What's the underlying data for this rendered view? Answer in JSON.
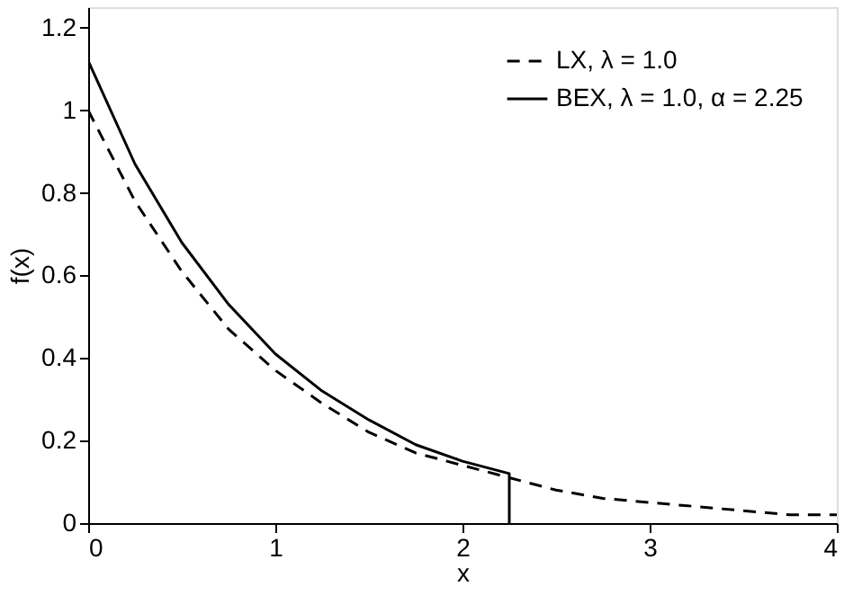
{
  "chart_data": {
    "type": "line",
    "xlabel": "x",
    "ylabel": "f(x)",
    "xlim": [
      0,
      4
    ],
    "xticks": [
      0,
      1,
      2,
      3,
      4
    ],
    "ylim": [
      0,
      1.25
    ],
    "yticks": [
      0,
      0.2,
      0.4,
      0.6,
      0.8,
      1,
      1.2
    ],
    "grid": false,
    "legend": "top right",
    "marker": "none",
    "series": [
      {
        "name": "LX,    λ = 1.0",
        "color": "#000000",
        "line_style": "dashed",
        "x": [
          0,
          0.25,
          0.5,
          0.75,
          1,
          1.25,
          1.5,
          1.75,
          2,
          2.25,
          2.5,
          2.75,
          3,
          3.25,
          3.5,
          3.75,
          4
        ],
        "values": [
          1,
          0.78,
          0.61,
          0.47,
          0.37,
          0.29,
          0.22,
          0.17,
          0.14,
          0.11,
          0.08,
          0.06,
          0.05,
          0.04,
          0.03,
          0.02,
          0.02
        ]
      },
      {
        "name": "BEX, λ = 1.0, α = 2.25",
        "color": "#000000",
        "line_style": "solid",
        "x": [
          0,
          0.25,
          0.5,
          0.75,
          1,
          1.25,
          1.5,
          1.75,
          2,
          2.25,
          2.25
        ],
        "values": [
          1.12,
          0.87,
          0.68,
          0.53,
          0.41,
          0.32,
          0.25,
          0.19,
          0.15,
          0.12,
          0
        ]
      }
    ]
  }
}
